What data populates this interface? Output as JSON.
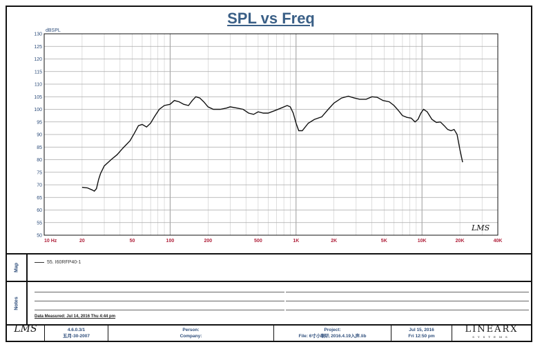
{
  "chart_data": {
    "type": "line",
    "title": "SPL vs Freq",
    "ylabel": "dBSPL",
    "xlabel": "",
    "xscale": "log",
    "xlim": [
      10,
      40000
    ],
    "ylim": [
      50,
      130
    ],
    "grid": true,
    "y_ticks": [
      "50",
      "55",
      "60",
      "65",
      "70",
      "75",
      "80",
      "85",
      "90",
      "95",
      "100",
      "105",
      "110",
      "115",
      "120",
      "125",
      "130"
    ],
    "x_ticks": [
      {
        "value": 10,
        "label": "10 Hz"
      },
      {
        "value": 20,
        "label": "20"
      },
      {
        "value": 50,
        "label": "50"
      },
      {
        "value": 100,
        "label": "100"
      },
      {
        "value": 200,
        "label": "200"
      },
      {
        "value": 500,
        "label": "500"
      },
      {
        "value": 1000,
        "label": "1K"
      },
      {
        "value": 2000,
        "label": "2K"
      },
      {
        "value": 5000,
        "label": "5K"
      },
      {
        "value": 10000,
        "label": "10K"
      },
      {
        "value": 20000,
        "label": "20K"
      },
      {
        "value": 40000,
        "label": "40K"
      }
    ],
    "series": [
      {
        "name": "55. I60RFP40-1",
        "points": [
          [
            20,
            69
          ],
          [
            22,
            68.8
          ],
          [
            24,
            68
          ],
          [
            25,
            67.5
          ],
          [
            26,
            68.5
          ],
          [
            27,
            72
          ],
          [
            28,
            74.5
          ],
          [
            30,
            77.5
          ],
          [
            34,
            80
          ],
          [
            38,
            82
          ],
          [
            42,
            84.5
          ],
          [
            48,
            87.5
          ],
          [
            52,
            90.5
          ],
          [
            56,
            93.5
          ],
          [
            60,
            94
          ],
          [
            65,
            93
          ],
          [
            70,
            94.5
          ],
          [
            75,
            97
          ],
          [
            82,
            100
          ],
          [
            90,
            101.5
          ],
          [
            100,
            102
          ],
          [
            108,
            103.5
          ],
          [
            118,
            103
          ],
          [
            128,
            102
          ],
          [
            140,
            101.5
          ],
          [
            150,
            103.5
          ],
          [
            160,
            105
          ],
          [
            172,
            104.5
          ],
          [
            185,
            103
          ],
          [
            200,
            101
          ],
          [
            220,
            100
          ],
          [
            250,
            100
          ],
          [
            280,
            100.5
          ],
          [
            300,
            101
          ],
          [
            340,
            100.5
          ],
          [
            380,
            100
          ],
          [
            420,
            98.5
          ],
          [
            460,
            98
          ],
          [
            500,
            99
          ],
          [
            550,
            98.5
          ],
          [
            600,
            98.5
          ],
          [
            680,
            99.5
          ],
          [
            760,
            100.5
          ],
          [
            850,
            101.5
          ],
          [
            900,
            101
          ],
          [
            950,
            98.5
          ],
          [
            1000,
            94.5
          ],
          [
            1050,
            91.5
          ],
          [
            1120,
            91.5
          ],
          [
            1250,
            94.5
          ],
          [
            1400,
            96
          ],
          [
            1600,
            97
          ],
          [
            1800,
            100
          ],
          [
            2000,
            102.5
          ],
          [
            2300,
            104.5
          ],
          [
            2600,
            105.2
          ],
          [
            2900,
            104.5
          ],
          [
            3200,
            104
          ],
          [
            3600,
            104
          ],
          [
            4000,
            105
          ],
          [
            4400,
            104.8
          ],
          [
            4900,
            103.5
          ],
          [
            5500,
            103
          ],
          [
            6000,
            101.5
          ],
          [
            6500,
            99.5
          ],
          [
            7000,
            97.5
          ],
          [
            7600,
            96.8
          ],
          [
            8200,
            96.5
          ],
          [
            8800,
            95
          ],
          [
            9300,
            96
          ],
          [
            9800,
            98.5
          ],
          [
            10300,
            100
          ],
          [
            11000,
            99
          ],
          [
            12000,
            96
          ],
          [
            13000,
            94.8
          ],
          [
            14000,
            95
          ],
          [
            15000,
            93.5
          ],
          [
            16000,
            92
          ],
          [
            17000,
            91.5
          ],
          [
            18000,
            92
          ],
          [
            19000,
            90
          ],
          [
            20000,
            84
          ],
          [
            21000,
            79
          ]
        ]
      }
    ]
  },
  "map": {
    "label": "Map",
    "entry": "55. I60RFP40-1"
  },
  "notes": {
    "label": "Notes",
    "measured": "Data Measured: Jul 14, 2016  Thu  4:44 pm"
  },
  "footer": {
    "logo": "LMS",
    "version": "4.6.0.3/1",
    "build_date": "五月-30-2007",
    "person": "Person:",
    "company": "Company:",
    "project": "Project:",
    "file": "File: 6寸小喇叭 2016.4.19入声.lib",
    "date": "Jul 15, 2016",
    "time": "Fri 12:50 pm",
    "brand": "LINEARX",
    "brand_sub": "SYSTEMS"
  },
  "watermark": "LMS"
}
